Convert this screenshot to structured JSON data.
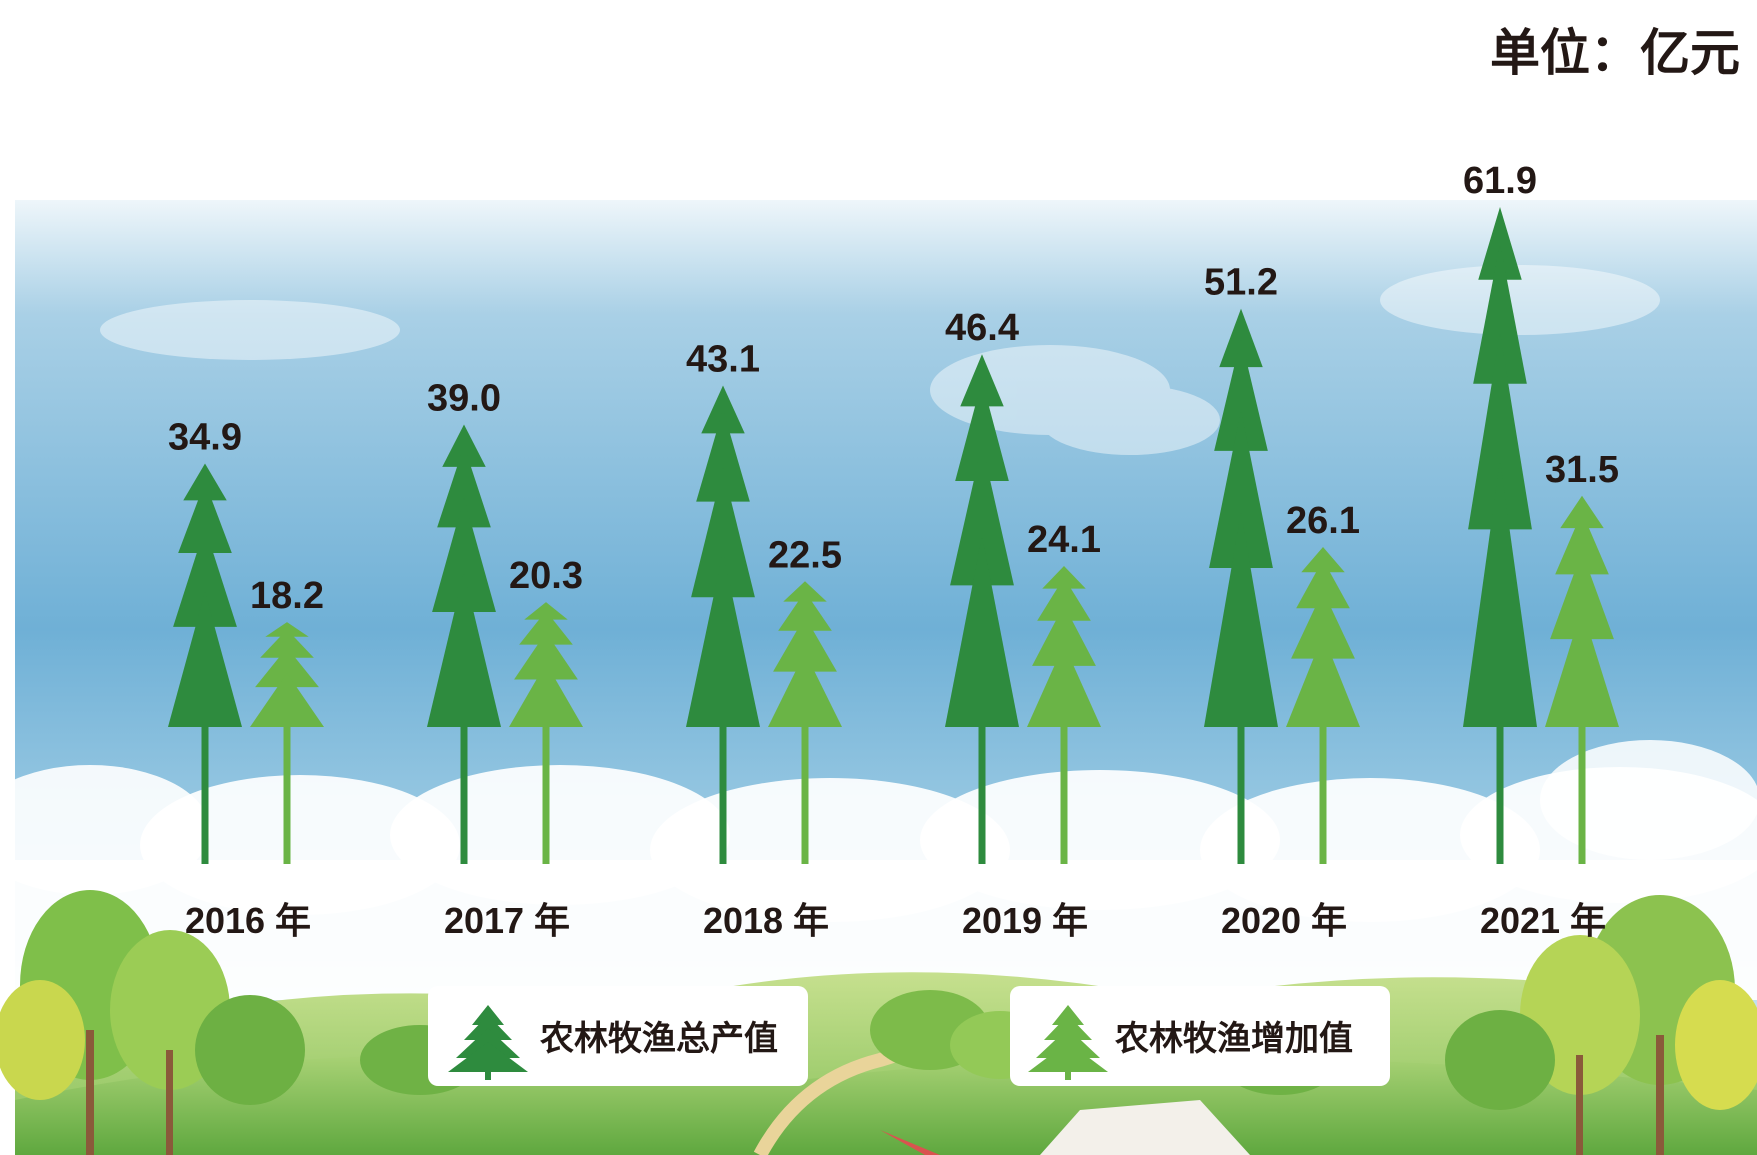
{
  "unit_label": "单位：亿元",
  "colors": {
    "series_total": "#2e8b3e",
    "series_added": "#6ab446",
    "sky_top": "#7fb7d9",
    "sky_bottom": "#d9edf5",
    "hill": "#8cc463",
    "text": "#231815"
  },
  "chart_data": {
    "type": "bar",
    "categories": [
      "2016 年",
      "2017 年",
      "2018 年",
      "2019 年",
      "2020 年",
      "2021 年"
    ],
    "series": [
      {
        "name": "农林牧渔总产值",
        "values": [
          34.9,
          39.0,
          43.1,
          46.4,
          51.2,
          61.9
        ],
        "labels": [
          "34.9",
          "39.0",
          "43.1",
          "46.4",
          "51.2",
          "61.9"
        ]
      },
      {
        "name": "农林牧渔增加值",
        "values": [
          18.2,
          20.3,
          22.5,
          24.1,
          26.1,
          31.5
        ],
        "labels": [
          "18.2",
          "20.3",
          "22.5",
          "24.1",
          "26.1",
          "31.5"
        ]
      }
    ],
    "unit": "亿元",
    "legend_position": "bottom",
    "mark_style": "tree-icon"
  }
}
